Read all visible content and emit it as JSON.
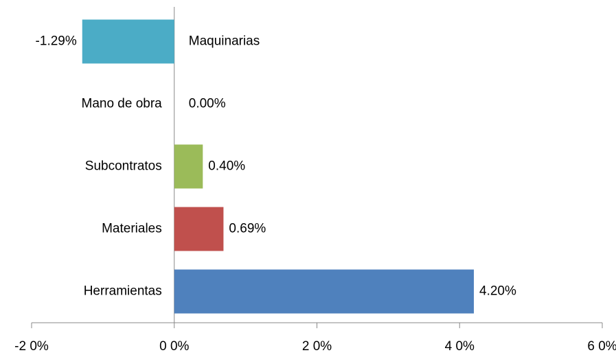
{
  "chart_data": {
    "type": "bar",
    "orientation": "horizontal",
    "categories": [
      "Maquinarias",
      "Mano de obra",
      "Subcontratos",
      "Materiales",
      "Herramientas"
    ],
    "values": [
      -1.29,
      0,
      0.4,
      0.69,
      4.2
    ],
    "value_labels": [
      "-1.29%",
      "0.00%",
      "0.40%",
      "0.69%",
      "4.20%"
    ],
    "colors": [
      "#4bacc6",
      "#4bacc6",
      "#9bbb59",
      "#c0504d",
      "#4f81bd"
    ],
    "xlim": [
      -2,
      6
    ],
    "xticks": [
      {
        "value": -2,
        "label": "-2 0%"
      },
      {
        "value": 0,
        "label": "0 0%"
      },
      {
        "value": 2,
        "label": "2 0%"
      },
      {
        "value": 4,
        "label": "4 0%"
      },
      {
        "value": 6,
        "label": "6 0%"
      }
    ],
    "grid": false
  }
}
